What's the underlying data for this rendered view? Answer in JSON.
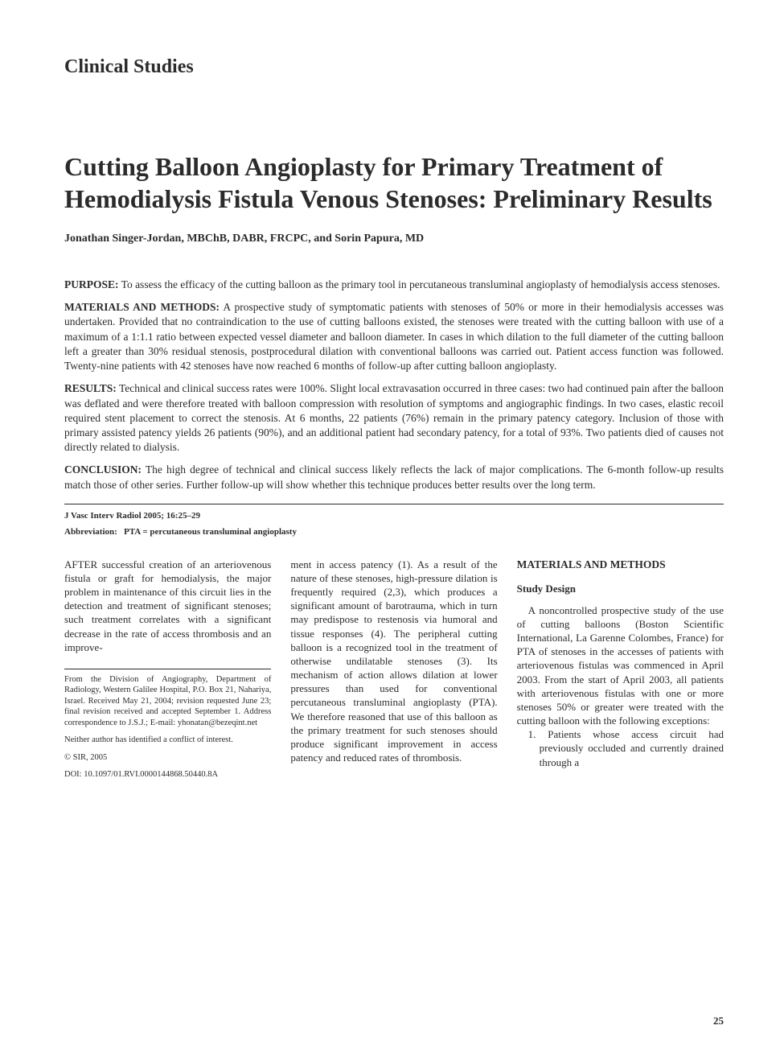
{
  "section_label": "Clinical Studies",
  "title": "Cutting Balloon Angioplasty for Primary Treatment of Hemodialysis Fistula Venous Stenoses: Preliminary Results",
  "authors": "Jonathan Singer-Jordan, MBChB, DABR, FRCPC, and Sorin Papura, MD",
  "abstract": {
    "purpose_label": "PURPOSE:",
    "purpose": "To assess the efficacy of the cutting balloon as the primary tool in percutaneous transluminal angioplasty of hemodialysis access stenoses.",
    "methods_label": "MATERIALS AND METHODS:",
    "methods": "A prospective study of symptomatic patients with stenoses of 50% or more in their hemodialysis accesses was undertaken. Provided that no contraindication to the use of cutting balloons existed, the stenoses were treated with the cutting balloon with use of a maximum of a 1:1.1 ratio between expected vessel diameter and balloon diameter. In cases in which dilation to the full diameter of the cutting balloon left a greater than 30% residual stenosis, postprocedural dilation with conventional balloons was carried out. Patient access function was followed. Twenty-nine patients with 42 stenoses have now reached 6 months of follow-up after cutting balloon angioplasty.",
    "results_label": "RESULTS:",
    "results": "Technical and clinical success rates were 100%. Slight local extravasation occurred in three cases: two had continued pain after the balloon was deflated and were therefore treated with balloon compression with resolution of symptoms and angiographic findings. In two cases, elastic recoil required stent placement to correct the stenosis. At 6 months, 22 patients (76%) remain in the primary patency category. Inclusion of those with primary assisted patency yields 26 patients (90%), and an additional patient had secondary patency, for a total of 93%. Two patients died of causes not directly related to dialysis.",
    "conclusion_label": "CONCLUSION:",
    "conclusion": "The high degree of technical and clinical success likely reflects the lack of major complications. The 6-month follow-up results match those of other series. Further follow-up will show whether this technique produces better results over the long term."
  },
  "citation": "J Vasc Interv Radiol 2005; 16:25–29",
  "abbrev_label": "Abbreviation:",
  "abbrev_text": "PTA = percutaneous transluminal angioplasty",
  "body": {
    "col1_first": "AFTER",
    "col1_rest": " successful creation of an arteriovenous fistula or graft for hemodialysis, the major problem in maintenance of this circuit lies in the detection and treatment of significant stenoses; such treatment correlates with a significant decrease in the rate of access thrombosis and an improve-",
    "col2": "ment in access patency (1). As a result of the nature of these stenoses, high-pressure dilation is frequently required (2,3), which produces a significant amount of barotrauma, which in turn may predispose to restenosis via humoral and tissue responses (4). The peripheral cutting balloon is a recognized tool in the treatment of otherwise undilatable stenoses (3). Its mechanism of action allows dilation at lower pressures than used for conventional percutaneous transluminal angioplasty (PTA). We therefore reasoned that use of this balloon as the primary treatment for such stenoses should produce significant improvement in access patency and reduced rates of thrombosis.",
    "col3_heading": "MATERIALS AND METHODS",
    "col3_subheading": "Study Design",
    "col3_para": "A noncontrolled prospective study of the use of cutting balloons (Boston Scientific International, La Garenne Colombes, France) for PTA of stenoses in the accesses of patients with arteriovenous fistulas was commenced in April 2003. From the start of April 2003, all patients with arteriovenous fistulas with one or more stenoses 50% or greater were treated with the cutting balloon with the following exceptions:",
    "col3_item1": "1. Patients whose access circuit had previously occluded and currently drained through a"
  },
  "footnotes": {
    "affiliation": "From the Division of Angiography, Department of Radiology, Western Galilee Hospital, P.O. Box 21, Nahariya, Israel. Received May 21, 2004; revision requested June 23; final revision received and accepted September 1. Address correspondence to J.S.J.; E-mail: yhonatan@bezeqint.net",
    "conflict": "Neither author has identified a conflict of interest.",
    "copyright": "© SIR, 2005",
    "doi": "DOI: 10.1097/01.RVI.0000144868.50440.8A"
  },
  "page_number": "25"
}
